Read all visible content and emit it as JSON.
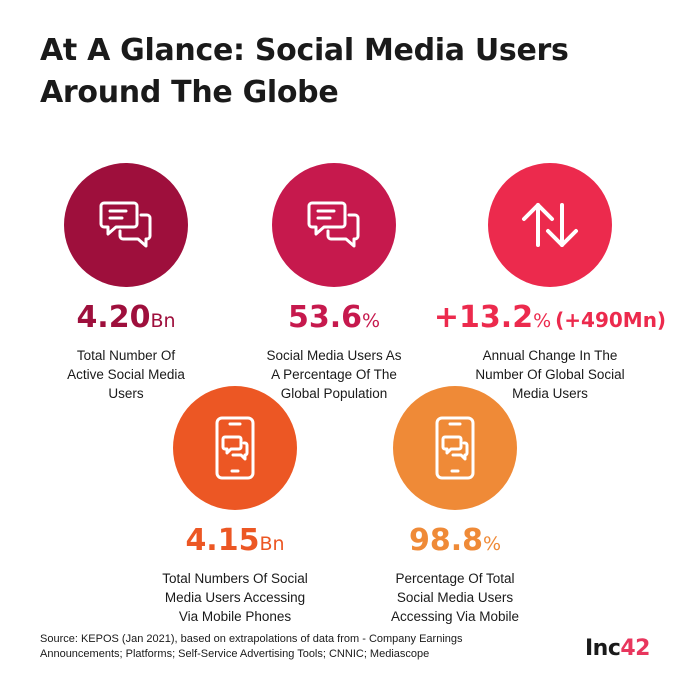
{
  "title": {
    "line1": "At A Glance: Social Media Users",
    "line2": "Around The Globe"
  },
  "stats": [
    {
      "value": "4.20",
      "unit": "Bn",
      "extra": "",
      "desc": [
        "Total Number Of",
        "Active Social Media",
        "Users"
      ],
      "color": "#9e0f3c",
      "icon": "chat-bubbles-icon"
    },
    {
      "value": "53.6",
      "unit": "%",
      "extra": "",
      "desc": [
        "Social Media Users As",
        "A Percentage Of The",
        "Global Population"
      ],
      "color": "#c6194d",
      "icon": "chat-bubbles-icon"
    },
    {
      "value": "+13.2",
      "unit": "%",
      "extra": "(+490Mn)",
      "desc": [
        "Annual Change In The",
        "Number Of Global Social",
        "Media Users"
      ],
      "color": "#ec2a4d",
      "icon": "up-down-arrows-icon"
    },
    {
      "value": "4.15",
      "unit": "Bn",
      "extra": "",
      "desc": [
        "Total Numbers Of Social",
        "Media Users Accessing",
        "Via Mobile Phones"
      ],
      "color": "#ec5724",
      "icon": "mobile-phone-chat-icon"
    },
    {
      "value": "98.8",
      "unit": "%",
      "extra": "",
      "desc": [
        "Percentage Of Total",
        "Social Media Users",
        "Accessing Via Mobile"
      ],
      "color": "#ef8a37",
      "icon": "mobile-phone-chat-icon"
    }
  ],
  "source": {
    "line1": "Source: KEPOS (Jan 2021), based on extrapolations of data from - Company Earnings",
    "line2": "Announcements; Platforms; Self-Service Advertising Tools; CNNIC; Mediascope"
  },
  "logo": {
    "text": "Inc",
    "number": "42"
  }
}
